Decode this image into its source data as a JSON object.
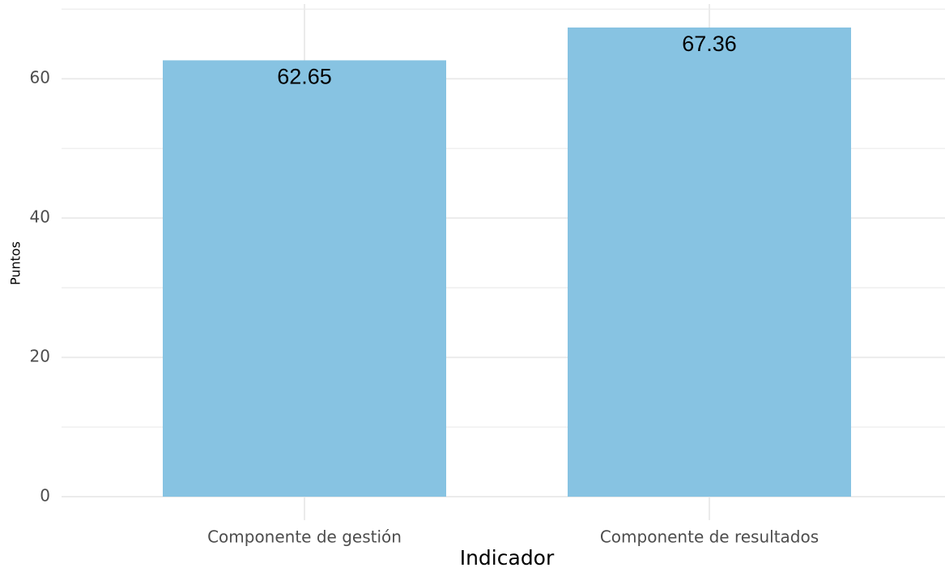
{
  "chart_data": {
    "type": "bar",
    "x_label": "Indicador",
    "y_label": "Puntos",
    "categories": [
      "Componente de gestión",
      "Componente de resultados"
    ],
    "values": [
      62.65,
      67.36
    ],
    "color": "#87c3e2",
    "ylim": [
      -3.368,
      70.728
    ],
    "yticks": [
      0,
      20,
      40,
      60
    ],
    "minor_yticks": [
      10,
      30,
      50,
      70
    ],
    "grid": true
  }
}
